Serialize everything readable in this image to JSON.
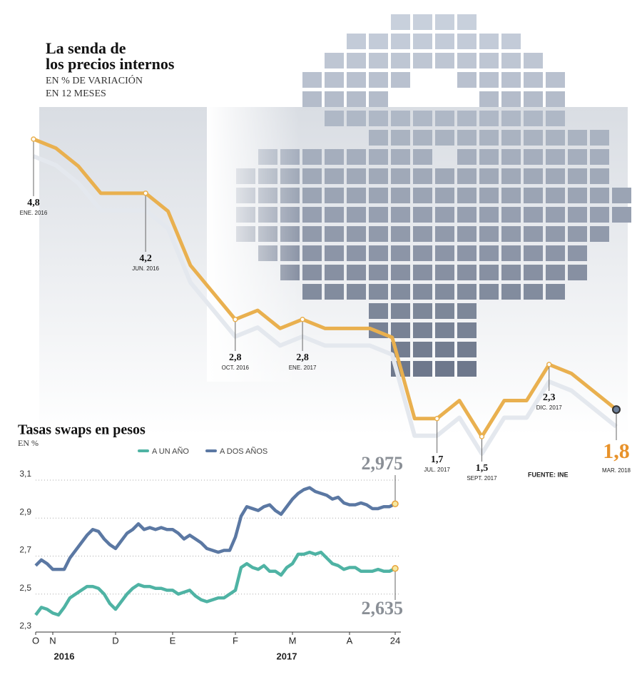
{
  "chart_data": [
    {
      "type": "line",
      "title": [
        "La senda de",
        "los precios internos"
      ],
      "subtitle": [
        "EN % DE VARIACIÓN",
        "EN 12 MESES"
      ],
      "source": "FUENTE: INE",
      "color": "#e9b04f",
      "categories": [
        "ENE. 2016",
        null,
        null,
        null,
        null,
        "JUN. 2016",
        null,
        null,
        null,
        "OCT. 2016",
        null,
        null,
        "ENE. 2017",
        null,
        null,
        null,
        null,
        null,
        "JUL. 2017",
        null,
        "SEPT. 2017",
        null,
        null,
        "DIC. 2017",
        null,
        null,
        "MAR. 2018"
      ],
      "values": [
        4.8,
        4.7,
        4.5,
        4.2,
        4.2,
        4.2,
        4.0,
        3.4,
        3.1,
        2.8,
        2.9,
        2.7,
        2.8,
        2.7,
        2.7,
        2.7,
        2.6,
        1.7,
        1.7,
        1.9,
        1.5,
        1.9,
        1.9,
        2.3,
        2.2,
        2.0,
        1.8
      ],
      "value_labels": [
        "4,8",
        null,
        null,
        null,
        null,
        "4,2",
        null,
        null,
        null,
        "2,8",
        null,
        null,
        "2,8",
        null,
        null,
        null,
        null,
        null,
        "1,7",
        null,
        "1,5",
        null,
        null,
        "2,3",
        null,
        null,
        "1,8"
      ]
    },
    {
      "type": "line",
      "title": "Tasas swaps en pesos",
      "subtitle": "EN %",
      "ylim": [
        2.3,
        3.1
      ],
      "yticks": [
        {
          "value": 2.3,
          "label": "2,3"
        },
        {
          "value": 2.5,
          "label": "2,5"
        },
        {
          "value": 2.7,
          "label": "2,7"
        },
        {
          "value": 2.9,
          "label": "2,9"
        },
        {
          "value": 3.1,
          "label": "3,1"
        }
      ],
      "xlim": [
        0,
        63
      ],
      "xticks": [
        {
          "value": 0,
          "label": "O"
        },
        {
          "value": 3,
          "label": "N"
        },
        {
          "value": 14,
          "label": "D"
        },
        {
          "value": 24,
          "label": "E"
        },
        {
          "value": 35,
          "label": "F"
        },
        {
          "value": 45,
          "label": "M"
        },
        {
          "value": 55,
          "label": "A"
        },
        {
          "value": 63,
          "label": "24"
        }
      ],
      "year_labels": [
        {
          "value": 5,
          "label": "2016"
        },
        {
          "value": 44,
          "label": "2017"
        }
      ],
      "grid": true,
      "series": [
        {
          "name": "A UN AÑO",
          "color": "#4fb3a4",
          "end_label": "2,635",
          "values": [
            2.39,
            2.43,
            2.42,
            2.4,
            2.39,
            2.43,
            2.48,
            2.5,
            2.52,
            2.54,
            2.54,
            2.53,
            2.5,
            2.45,
            2.42,
            2.46,
            2.5,
            2.53,
            2.55,
            2.54,
            2.54,
            2.53,
            2.53,
            2.52,
            2.52,
            2.5,
            2.51,
            2.52,
            2.49,
            2.47,
            2.46,
            2.47,
            2.48,
            2.48,
            2.5,
            2.52,
            2.64,
            2.66,
            2.64,
            2.63,
            2.65,
            2.62,
            2.62,
            2.6,
            2.64,
            2.66,
            2.71,
            2.71,
            2.72,
            2.71,
            2.72,
            2.69,
            2.66,
            2.65,
            2.63,
            2.64,
            2.64,
            2.62,
            2.62,
            2.62,
            2.63,
            2.62,
            2.62,
            2.635
          ]
        },
        {
          "name": "A DOS AÑOS",
          "color": "#5b78a3",
          "end_label": "2,975",
          "values": [
            2.65,
            2.68,
            2.66,
            2.63,
            2.63,
            2.63,
            2.69,
            2.73,
            2.77,
            2.81,
            2.84,
            2.83,
            2.79,
            2.76,
            2.74,
            2.78,
            2.82,
            2.84,
            2.87,
            2.84,
            2.85,
            2.84,
            2.85,
            2.84,
            2.84,
            2.82,
            2.79,
            2.81,
            2.79,
            2.77,
            2.74,
            2.73,
            2.72,
            2.73,
            2.73,
            2.8,
            2.91,
            2.96,
            2.95,
            2.94,
            2.96,
            2.97,
            2.94,
            2.92,
            2.96,
            3.0,
            3.03,
            3.05,
            3.06,
            3.04,
            3.03,
            3.02,
            3.0,
            3.01,
            2.98,
            2.97,
            2.97,
            2.98,
            2.97,
            2.95,
            2.95,
            2.96,
            2.96,
            2.975
          ]
        }
      ]
    }
  ]
}
